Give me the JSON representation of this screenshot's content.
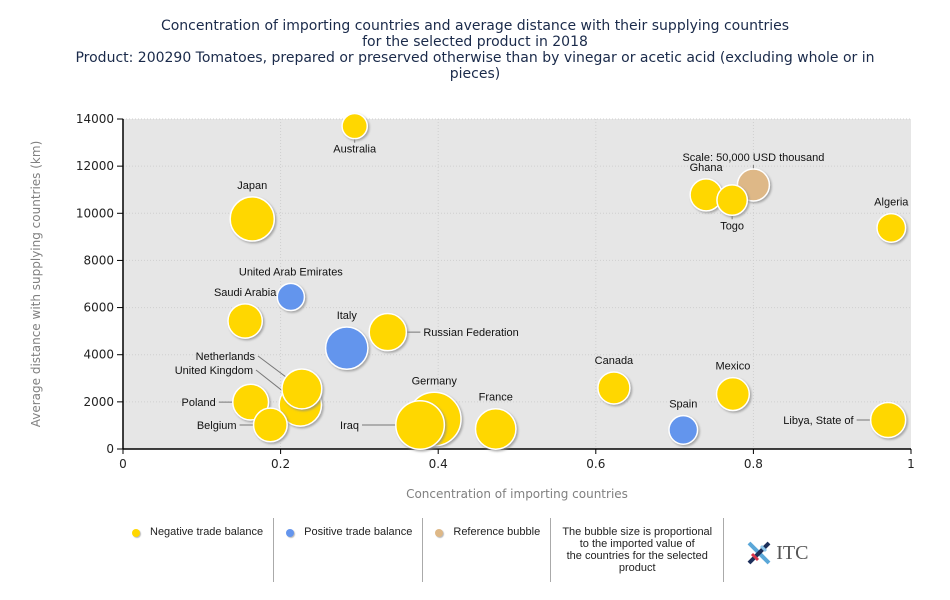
{
  "title": {
    "line1": "Concentration of importing countries and average distance with their supplying countries",
    "line2": "for the selected product in 2018",
    "line3": "Product: 200290 Tomatoes, prepared or preserved otherwise than by vinegar or acetic acid (excluding whole or in",
    "line4": "pieces)"
  },
  "legend": {
    "negative": "Negative trade balance",
    "positive": "Positive trade balance",
    "reference": "Reference bubble",
    "note_lines": [
      "The bubble size is proportional",
      "to the imported value of",
      "the countries for the selected",
      "product"
    ],
    "logo_text": "ITC"
  },
  "colors": {
    "negative": "#FFD700",
    "positive": "#6495ED",
    "reference": "#DEB887",
    "plot_bg": "#E6E6E6",
    "axis_label": "#808080"
  },
  "chart_data": {
    "type": "scatter",
    "subtype": "bubble",
    "title": "Concentration of importing countries and average distance with their supplying countries for the selected product in 2018",
    "xlabel": "Concentration of importing countries",
    "ylabel": "Average distance with supplying countries (km)",
    "xlim": [
      0,
      1
    ],
    "ylim": [
      0,
      14000
    ],
    "xticks": [
      "0",
      "0.2",
      "0.4",
      "0.6",
      "0.8",
      "1"
    ],
    "xtick_values": [
      0,
      0.2,
      0.4,
      0.6,
      0.8,
      1
    ],
    "yticks": [
      "0",
      "2000",
      "4000",
      "6000",
      "8000",
      "10000",
      "12000",
      "14000"
    ],
    "ytick_values": [
      0,
      2000,
      4000,
      6000,
      8000,
      10000,
      12000,
      14000
    ],
    "grid": true,
    "legend_position": "bottom",
    "reference_label": "Scale: 50,000 USD thousand",
    "size_unit": "relative to reference bubble (reference = 1.0)",
    "points": [
      {
        "name": "Australia",
        "x": 0.294,
        "y": 13700,
        "size": 0.62,
        "category": "negative",
        "label_pos": "below-leader"
      },
      {
        "name": "Japan",
        "x": 0.164,
        "y": 9760,
        "size": 1.9,
        "category": "negative",
        "label_pos": "above"
      },
      {
        "name": "United Arab Emirates",
        "x": 0.213,
        "y": 6450,
        "size": 0.72,
        "category": "positive",
        "label_pos": "above"
      },
      {
        "name": "Saudi Arabia",
        "x": 0.155,
        "y": 5430,
        "size": 1.15,
        "category": "negative",
        "label_pos": "above"
      },
      {
        "name": "Italy",
        "x": 0.284,
        "y": 4280,
        "size": 1.75,
        "category": "positive",
        "label_pos": "above"
      },
      {
        "name": "Russian Federation",
        "x": 0.336,
        "y": 4960,
        "size": 1.35,
        "category": "negative",
        "label_pos": "right-leader"
      },
      {
        "name": "United Kingdom",
        "x": 0.225,
        "y": 1870,
        "size": 1.75,
        "category": "negative",
        "label_pos": "left-leader"
      },
      {
        "name": "Netherlands",
        "x": 0.227,
        "y": 2550,
        "size": 1.55,
        "category": "negative",
        "label_pos": "left-leader"
      },
      {
        "name": "Poland",
        "x": 0.162,
        "y": 1990,
        "size": 1.25,
        "category": "negative",
        "label_pos": "left-leader"
      },
      {
        "name": "Belgium",
        "x": 0.187,
        "y": 1020,
        "size": 1.1,
        "category": "negative",
        "label_pos": "left-leader"
      },
      {
        "name": "Germany",
        "x": 0.395,
        "y": 1270,
        "size": 2.8,
        "category": "negative",
        "label_pos": "above"
      },
      {
        "name": "Iraq",
        "x": 0.377,
        "y": 1020,
        "size": 2.3,
        "category": "negative",
        "label_pos": "left-leader"
      },
      {
        "name": "France",
        "x": 0.473,
        "y": 850,
        "size": 1.6,
        "category": "negative",
        "label_pos": "above"
      },
      {
        "name": "Canada",
        "x": 0.623,
        "y": 2590,
        "size": 1.0,
        "category": "negative",
        "label_pos": "above"
      },
      {
        "name": "Spain",
        "x": 0.711,
        "y": 810,
        "size": 0.8,
        "category": "positive",
        "label_pos": "above"
      },
      {
        "name": "Mexico",
        "x": 0.774,
        "y": 2330,
        "size": 1.05,
        "category": "negative",
        "label_pos": "above"
      },
      {
        "name": "Libya, State of",
        "x": 0.971,
        "y": 1230,
        "size": 1.2,
        "category": "negative",
        "label_pos": "left-leader"
      },
      {
        "name": "Ghana",
        "x": 0.74,
        "y": 10780,
        "size": 1.0,
        "category": "negative",
        "label_pos": "above"
      },
      {
        "name": "Togo",
        "x": 0.773,
        "y": 10560,
        "size": 0.9,
        "category": "negative",
        "label_pos": "below-leader"
      },
      {
        "name": "Algeria",
        "x": 0.975,
        "y": 9380,
        "size": 0.8,
        "category": "negative",
        "label_pos": "above"
      },
      {
        "name": "Scale: 50,000 USD thousand",
        "x": 0.8,
        "y": 11200,
        "size": 1.0,
        "category": "reference",
        "label_pos": "above-leader"
      }
    ]
  }
}
